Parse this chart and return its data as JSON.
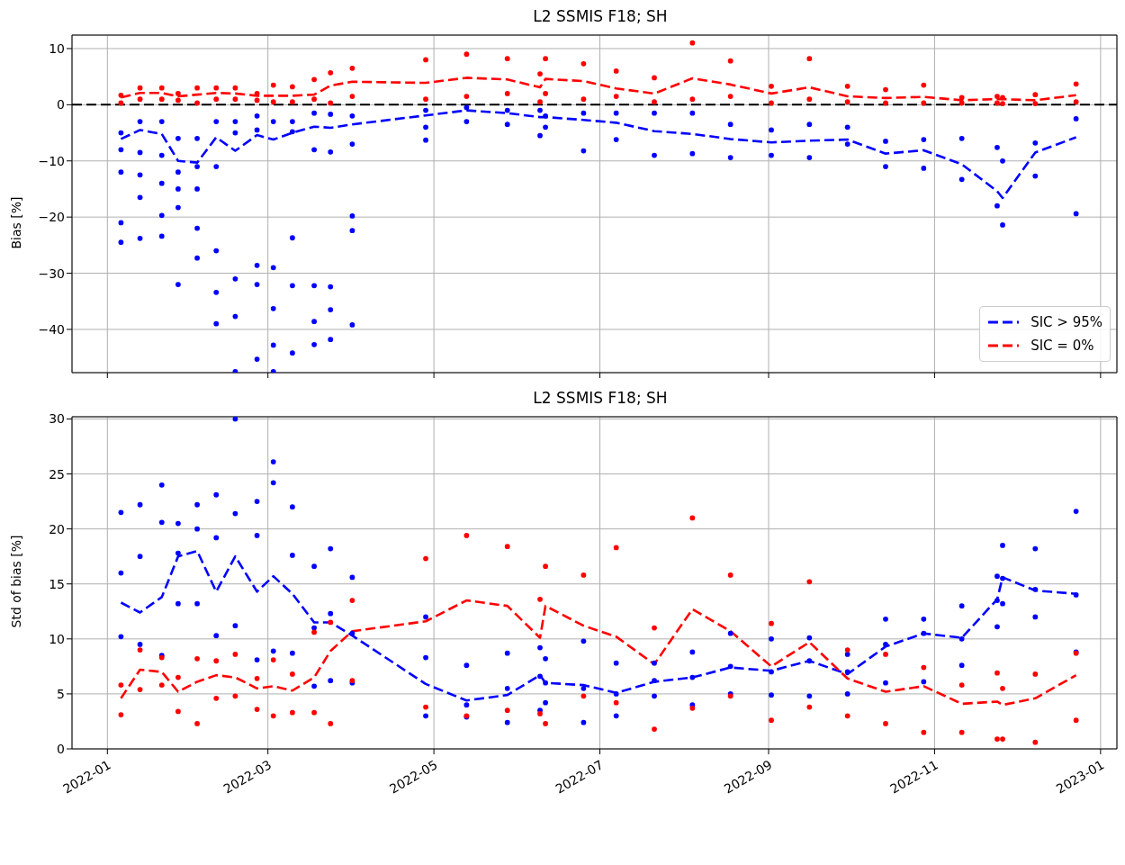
{
  "chart_data": [
    {
      "type": "line",
      "title": "L2 SSMIS F18; SH",
      "ylabel": "Bias [%]",
      "x": [
        "2022-01-06",
        "2022-01-13",
        "2022-01-21",
        "2022-01-27",
        "2022-02-03",
        "2022-02-10",
        "2022-02-17",
        "2022-02-25",
        "2022-03-03",
        "2022-03-10",
        "2022-03-18",
        "2022-03-24",
        "2022-04-01",
        "2022-04-28",
        "2022-05-13",
        "2022-05-28",
        "2022-06-09",
        "2022-06-11",
        "2022-06-25",
        "2022-07-07",
        "2022-07-21",
        "2022-08-04",
        "2022-08-18",
        "2022-09-02",
        "2022-09-16",
        "2022-09-30",
        "2022-10-14",
        "2022-10-28",
        "2022-11-11",
        "2022-11-24",
        "2022-11-26",
        "2022-12-08",
        "2022-12-23"
      ],
      "series": [
        {
          "type": "scatter",
          "color": "#0000ff",
          "marker": "circle",
          "x": [
            "2022-01-06",
            "2022-01-06",
            "2022-01-06",
            "2022-01-06",
            "2022-01-06",
            "2022-01-13",
            "2022-01-13",
            "2022-01-13",
            "2022-01-13",
            "2022-01-13",
            "2022-01-21",
            "2022-01-21",
            "2022-01-21",
            "2022-01-21",
            "2022-01-21",
            "2022-01-27",
            "2022-01-27",
            "2022-01-27",
            "2022-01-27",
            "2022-01-27",
            "2022-02-03",
            "2022-02-03",
            "2022-02-03",
            "2022-02-03",
            "2022-02-03",
            "2022-02-10",
            "2022-02-10",
            "2022-02-10",
            "2022-02-10",
            "2022-02-10",
            "2022-02-17",
            "2022-02-17",
            "2022-02-17",
            "2022-02-17",
            "2022-02-17",
            "2022-02-25",
            "2022-02-25",
            "2022-02-25",
            "2022-02-25",
            "2022-02-25",
            "2022-03-03",
            "2022-03-03",
            "2022-03-03",
            "2022-03-03",
            "2022-03-03",
            "2022-03-10",
            "2022-03-10",
            "2022-03-10",
            "2022-03-10",
            "2022-03-10",
            "2022-03-18",
            "2022-03-18",
            "2022-03-18",
            "2022-03-18",
            "2022-03-18",
            "2022-03-24",
            "2022-03-24",
            "2022-03-24",
            "2022-03-24",
            "2022-03-24",
            "2022-04-01",
            "2022-04-01",
            "2022-04-01",
            "2022-04-01",
            "2022-04-01",
            "2022-04-28",
            "2022-04-28",
            "2022-04-28",
            "2022-05-13",
            "2022-05-13",
            "2022-05-28",
            "2022-05-28",
            "2022-06-09",
            "2022-06-09",
            "2022-06-11",
            "2022-06-11",
            "2022-06-25",
            "2022-06-25",
            "2022-07-07",
            "2022-07-07",
            "2022-07-21",
            "2022-07-21",
            "2022-08-04",
            "2022-08-04",
            "2022-08-18",
            "2022-08-18",
            "2022-09-02",
            "2022-09-02",
            "2022-09-16",
            "2022-09-16",
            "2022-09-30",
            "2022-09-30",
            "2022-10-14",
            "2022-10-14",
            "2022-10-28",
            "2022-10-28",
            "2022-11-11",
            "2022-11-11",
            "2022-11-24",
            "2022-11-24",
            "2022-11-26",
            "2022-11-26",
            "2022-12-08",
            "2022-12-08",
            "2022-12-23",
            "2022-12-23"
          ],
          "values": [
            -5,
            -8,
            -12,
            -21,
            -24.5,
            -3,
            -8.5,
            -12.5,
            -16.5,
            -23.8,
            -3,
            -9,
            -14,
            -19.7,
            -23.4,
            -6,
            -12,
            -15,
            -18.3,
            -32,
            -6,
            -11,
            -15,
            -22,
            -27.3,
            -3,
            -11,
            -26,
            -33.4,
            -39,
            -3,
            -5,
            -31,
            -37.7,
            -47.5,
            -2,
            -4.5,
            -28.6,
            -32,
            -45.3,
            -3,
            -29,
            -36.3,
            -42.8,
            -47.5,
            -3,
            -4.8,
            -23.7,
            -32.2,
            -44.2,
            -1.5,
            -8,
            -32.2,
            -38.6,
            -42.7,
            -1.7,
            -8.4,
            -32.4,
            -36.5,
            -41.8,
            -2,
            -7,
            -19.8,
            -22.4,
            -39.2,
            -1,
            -4,
            -6.3,
            -0.5,
            -3,
            -1,
            -3.5,
            -1,
            -5.5,
            -2,
            -4,
            -1.5,
            -8.2,
            -1.5,
            -6.2,
            -1.5,
            -9,
            -1.5,
            -8.7,
            -3.5,
            -9.4,
            -4.5,
            -9,
            -3.5,
            -9.4,
            -4,
            -7,
            -6.5,
            -11,
            -6.2,
            -11.3,
            -6,
            -13.3,
            -7.6,
            -18,
            -10,
            -21.4,
            -6.8,
            -12.7,
            -2.5,
            -19.4
          ]
        },
        {
          "type": "scatter",
          "color": "#ff0000",
          "marker": "circle",
          "x": [
            "2022-01-06",
            "2022-01-06",
            "2022-01-13",
            "2022-01-13",
            "2022-01-21",
            "2022-01-21",
            "2022-01-27",
            "2022-01-27",
            "2022-02-03",
            "2022-02-03",
            "2022-02-10",
            "2022-02-10",
            "2022-02-17",
            "2022-02-17",
            "2022-02-25",
            "2022-02-25",
            "2022-03-03",
            "2022-03-03",
            "2022-03-10",
            "2022-03-10",
            "2022-03-18",
            "2022-03-18",
            "2022-03-24",
            "2022-03-24",
            "2022-04-01",
            "2022-04-01",
            "2022-04-28",
            "2022-04-28",
            "2022-05-13",
            "2022-05-13",
            "2022-05-28",
            "2022-05-28",
            "2022-06-09",
            "2022-06-09",
            "2022-06-11",
            "2022-06-11",
            "2022-06-25",
            "2022-06-25",
            "2022-07-07",
            "2022-07-07",
            "2022-07-21",
            "2022-07-21",
            "2022-08-04",
            "2022-08-04",
            "2022-08-18",
            "2022-08-18",
            "2022-09-02",
            "2022-09-02",
            "2022-09-16",
            "2022-09-16",
            "2022-09-30",
            "2022-09-30",
            "2022-10-14",
            "2022-10-14",
            "2022-10-28",
            "2022-10-28",
            "2022-11-11",
            "2022-11-11",
            "2022-11-24",
            "2022-11-24",
            "2022-11-26",
            "2022-11-26",
            "2022-12-08",
            "2022-12-08",
            "2022-12-23",
            "2022-12-23"
          ],
          "values": [
            0.3,
            1.7,
            1,
            3,
            1,
            3,
            0.8,
            2,
            0.3,
            3,
            1,
            3,
            1,
            3,
            0.8,
            2,
            0.5,
            3.5,
            0.5,
            3.2,
            1,
            4.5,
            0.3,
            5.7,
            1.5,
            6.5,
            1,
            8,
            1.5,
            9,
            2,
            8.2,
            0.5,
            5.5,
            2,
            8.2,
            1,
            7.3,
            1.5,
            6,
            0.5,
            4.8,
            1,
            11,
            1.5,
            7.8,
            0.3,
            3.3,
            1,
            8.2,
            0.5,
            3.3,
            0.3,
            2.7,
            0.3,
            3.5,
            0.3,
            1.3,
            0.3,
            1.5,
            0.2,
            1.3,
            0.2,
            1.8,
            0.5,
            3.7
          ]
        },
        {
          "type": "line",
          "name": "SIC > 95%",
          "color": "#0000ff",
          "line_style": "dashed",
          "marker": "none",
          "values": [
            -6.1,
            -4.5,
            -5.2,
            -10,
            -10.3,
            -5.8,
            -8.2,
            -5.4,
            -6.2,
            -5,
            -3.9,
            -4.1,
            -3.5,
            -1.9,
            -1,
            -1.5,
            -2.2,
            -2.2,
            -2.7,
            -3.2,
            -4.7,
            -5.2,
            -6.1,
            -6.7,
            -6.4,
            -6.2,
            -8.7,
            -8.1,
            -10.6,
            -15.4,
            -16.6,
            -8.5,
            -5.8
          ]
        },
        {
          "type": "line",
          "name": "SIC = 0%",
          "color": "#ff0000",
          "line_style": "dashed",
          "marker": "none",
          "values": [
            1.3,
            2.1,
            2.1,
            1.5,
            1.8,
            2.1,
            2,
            1.6,
            1.6,
            1.6,
            1.8,
            3.4,
            4.1,
            3.9,
            4.8,
            4.5,
            3.1,
            4.6,
            4.2,
            2.9,
            2,
            4.7,
            3.6,
            2,
            3.1,
            1.5,
            1.2,
            1.4,
            0.8,
            1,
            1,
            0.8,
            1.7
          ]
        }
      ],
      "xlim": [
        "2021-12-19",
        "2023-01-07"
      ],
      "xticks": [
        "2022-01",
        "2022-03",
        "2022-05",
        "2022-07",
        "2022-09",
        "2022-11",
        "2023-01"
      ],
      "ylim": [
        -47.7,
        12.4
      ],
      "yticks": [
        -40,
        -30,
        -20,
        -10,
        0,
        10
      ],
      "ref_lines": [
        {
          "axis": "y",
          "value": 0,
          "color": "#000000",
          "line_style": "dashed"
        }
      ],
      "grid": true,
      "legend": "bottom right",
      "tick_labels": "y"
    },
    {
      "type": "line",
      "title": "L2 SSMIS F18; SH",
      "ylabel": "Std of bias [%]",
      "x": [
        "2022-01-06",
        "2022-01-13",
        "2022-01-21",
        "2022-01-27",
        "2022-02-03",
        "2022-02-10",
        "2022-02-17",
        "2022-02-25",
        "2022-03-03",
        "2022-03-10",
        "2022-03-18",
        "2022-03-24",
        "2022-04-01",
        "2022-04-28",
        "2022-05-13",
        "2022-05-28",
        "2022-06-09",
        "2022-06-11",
        "2022-06-25",
        "2022-07-07",
        "2022-07-21",
        "2022-08-04",
        "2022-08-18",
        "2022-09-02",
        "2022-09-16",
        "2022-09-30",
        "2022-10-14",
        "2022-10-28",
        "2022-11-11",
        "2022-11-24",
        "2022-11-26",
        "2022-12-08",
        "2022-12-23"
      ],
      "series": [
        {
          "type": "scatter",
          "color": "#0000ff",
          "marker": "circle",
          "x": [
            "2022-01-06",
            "2022-01-06",
            "2022-01-06",
            "2022-01-13",
            "2022-01-13",
            "2022-01-13",
            "2022-01-21",
            "2022-01-21",
            "2022-01-21",
            "2022-01-27",
            "2022-01-27",
            "2022-01-27",
            "2022-02-03",
            "2022-02-03",
            "2022-02-03",
            "2022-02-10",
            "2022-02-10",
            "2022-02-10",
            "2022-02-17",
            "2022-02-17",
            "2022-02-17",
            "2022-02-25",
            "2022-02-25",
            "2022-02-25",
            "2022-03-03",
            "2022-03-03",
            "2022-03-03",
            "2022-03-10",
            "2022-03-10",
            "2022-03-10",
            "2022-03-18",
            "2022-03-18",
            "2022-03-18",
            "2022-03-24",
            "2022-03-24",
            "2022-03-24",
            "2022-04-01",
            "2022-04-01",
            "2022-04-01",
            "2022-04-28",
            "2022-04-28",
            "2022-04-28",
            "2022-05-13",
            "2022-05-13",
            "2022-05-13",
            "2022-05-28",
            "2022-05-28",
            "2022-05-28",
            "2022-06-09",
            "2022-06-09",
            "2022-06-09",
            "2022-06-11",
            "2022-06-11",
            "2022-06-11",
            "2022-06-25",
            "2022-06-25",
            "2022-06-25",
            "2022-07-07",
            "2022-07-07",
            "2022-07-07",
            "2022-07-21",
            "2022-07-21",
            "2022-07-21",
            "2022-08-04",
            "2022-08-04",
            "2022-08-04",
            "2022-08-18",
            "2022-08-18",
            "2022-08-18",
            "2022-09-02",
            "2022-09-02",
            "2022-09-02",
            "2022-09-16",
            "2022-09-16",
            "2022-09-16",
            "2022-09-30",
            "2022-09-30",
            "2022-09-30",
            "2022-10-14",
            "2022-10-14",
            "2022-10-14",
            "2022-10-28",
            "2022-10-28",
            "2022-10-28",
            "2022-11-11",
            "2022-11-11",
            "2022-11-11",
            "2022-11-24",
            "2022-11-24",
            "2022-11-24",
            "2022-11-26",
            "2022-11-26",
            "2022-11-26",
            "2022-12-08",
            "2022-12-08",
            "2022-12-08",
            "2022-12-23",
            "2022-12-23",
            "2022-12-23"
          ],
          "values": [
            10.2,
            16,
            21.5,
            9.5,
            17.5,
            22.2,
            8.5,
            20.6,
            24,
            13.2,
            17.8,
            20.5,
            13.2,
            20,
            22.2,
            10.3,
            19.2,
            23.1,
            11.2,
            21.4,
            30,
            8.1,
            19.4,
            22.5,
            8.9,
            24.2,
            26.1,
            8.7,
            17.6,
            22,
            5.7,
            11,
            16.6,
            6.2,
            12.3,
            18.2,
            6,
            10.5,
            15.6,
            3,
            8.3,
            12,
            2.9,
            4,
            7.6,
            2.4,
            5.5,
            8.7,
            3.5,
            6.6,
            9.2,
            4.2,
            6,
            8.2,
            2.4,
            5.5,
            9.8,
            3,
            5,
            7.8,
            4.8,
            6.2,
            7.8,
            4,
            6.5,
            8.8,
            5,
            7.5,
            10.5,
            4.9,
            7,
            10,
            4.8,
            8,
            10.1,
            5,
            7,
            8.6,
            6,
            9.5,
            11.8,
            6.1,
            10.5,
            11.8,
            7.6,
            10,
            13,
            11.1,
            13.5,
            15.7,
            13.2,
            15.5,
            18.5,
            12,
            14.5,
            18.2,
            8.8,
            14,
            21.6
          ]
        },
        {
          "type": "scatter",
          "color": "#ff0000",
          "marker": "circle",
          "x": [
            "2022-01-06",
            "2022-01-06",
            "2022-01-13",
            "2022-01-13",
            "2022-01-21",
            "2022-01-21",
            "2022-01-27",
            "2022-01-27",
            "2022-02-03",
            "2022-02-03",
            "2022-02-10",
            "2022-02-10",
            "2022-02-17",
            "2022-02-17",
            "2022-02-25",
            "2022-02-25",
            "2022-03-03",
            "2022-03-03",
            "2022-03-10",
            "2022-03-10",
            "2022-03-18",
            "2022-03-18",
            "2022-03-24",
            "2022-03-24",
            "2022-04-01",
            "2022-04-01",
            "2022-04-28",
            "2022-04-28",
            "2022-05-13",
            "2022-05-13",
            "2022-05-28",
            "2022-05-28",
            "2022-06-09",
            "2022-06-09",
            "2022-06-11",
            "2022-06-11",
            "2022-06-25",
            "2022-06-25",
            "2022-07-07",
            "2022-07-07",
            "2022-07-21",
            "2022-07-21",
            "2022-08-04",
            "2022-08-04",
            "2022-08-18",
            "2022-08-18",
            "2022-09-02",
            "2022-09-02",
            "2022-09-16",
            "2022-09-16",
            "2022-09-30",
            "2022-09-30",
            "2022-10-14",
            "2022-10-14",
            "2022-10-28",
            "2022-10-28",
            "2022-11-11",
            "2022-11-11",
            "2022-11-24",
            "2022-11-24",
            "2022-11-26",
            "2022-11-26",
            "2022-12-08",
            "2022-12-08",
            "2022-12-23",
            "2022-12-23"
          ],
          "values": [
            3.1,
            5.8,
            5.4,
            9,
            5.8,
            8.3,
            3.4,
            6.5,
            2.3,
            8.2,
            4.6,
            8,
            4.8,
            8.6,
            3.6,
            6.4,
            3,
            8.1,
            3.3,
            6.8,
            3.3,
            10.6,
            2.3,
            11.5,
            6.2,
            13.5,
            3.8,
            17.3,
            3,
            19.4,
            3.5,
            18.4,
            3.2,
            13.6,
            2.3,
            16.6,
            4.8,
            15.8,
            4.2,
            18.3,
            1.8,
            11,
            3.7,
            21,
            4.8,
            15.8,
            2.6,
            11.4,
            3.8,
            15.2,
            3,
            9,
            2.3,
            8.6,
            1.5,
            7.4,
            1.5,
            5.8,
            0.9,
            6.9,
            0.9,
            5.5,
            0.6,
            6.8,
            2.6,
            8.7
          ]
        },
        {
          "type": "line",
          "color": "#0000ff",
          "line_style": "dashed",
          "marker": "none",
          "values": [
            13.3,
            12.4,
            13.8,
            17.5,
            18,
            14.3,
            17.5,
            14.3,
            15.7,
            14.1,
            11.5,
            11.5,
            10.3,
            5.9,
            4.4,
            4.9,
            6.7,
            6,
            5.8,
            5.1,
            6.1,
            6.5,
            7.4,
            7.1,
            8,
            6.8,
            9.3,
            10.5,
            10.1,
            13.6,
            15.6,
            14.4,
            14.1
          ]
        },
        {
          "type": "line",
          "color": "#ff0000",
          "line_style": "dashed",
          "marker": "none",
          "values": [
            4.6,
            7.2,
            7,
            5.2,
            6.1,
            6.7,
            6.5,
            5.5,
            5.7,
            5.3,
            6.5,
            8.9,
            10.7,
            11.6,
            13.5,
            13,
            10.1,
            13,
            11.2,
            10.2,
            7.7,
            12.7,
            10.7,
            7.5,
            9.7,
            6.4,
            5.2,
            5.7,
            4.1,
            4.3,
            4,
            4.6,
            6.7
          ]
        }
      ],
      "xlim": [
        "2021-12-19",
        "2023-01-07"
      ],
      "xticks": [
        "2022-01",
        "2022-03",
        "2022-05",
        "2022-07",
        "2022-09",
        "2022-11",
        "2023-01"
      ],
      "ylim": [
        0,
        30.2
      ],
      "yticks": [
        0,
        5,
        10,
        15,
        20,
        25,
        30
      ],
      "grid": true
    }
  ]
}
